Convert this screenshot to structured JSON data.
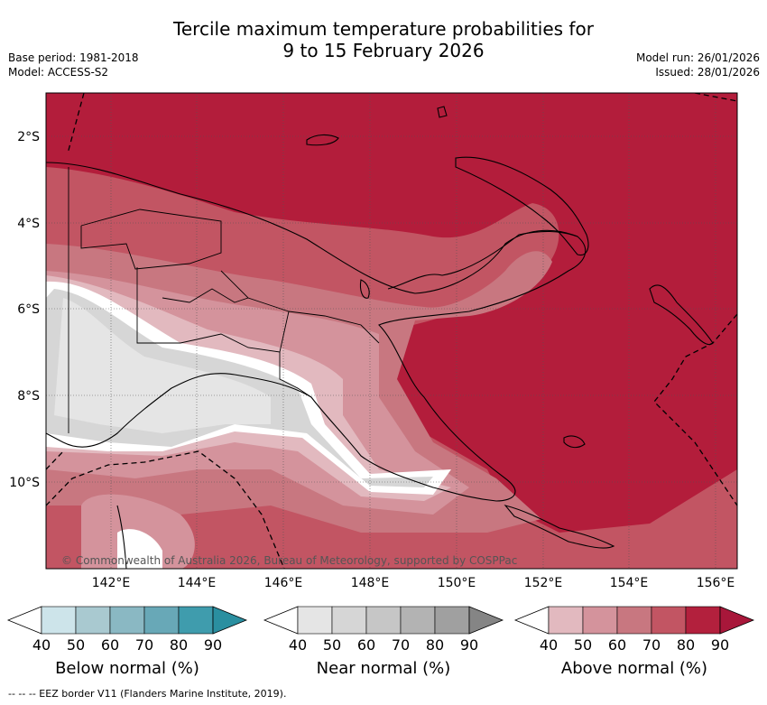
{
  "title_line1": "Tercile maximum temperature probabilities for",
  "title_line2": "9 to 15 February 2026",
  "base_period": "Base period: 1981-2018",
  "model": "Model: ACCESS-S2",
  "model_run": "Model run: 26/01/2026",
  "issued": "Issued: 28/01/2026",
  "copyright": "© Commonwealth of Australia 2026, Bureau of Meteorology, supported by COSPPac",
  "footer": "--  --  -- EEZ border V11 (Flanders Marine Institute, 2019).",
  "lat_labels": [
    "2°S",
    "4°S",
    "6°S",
    "8°S",
    "10°S"
  ],
  "lon_labels": [
    "142°E",
    "144°E",
    "146°E",
    "148°E",
    "150°E",
    "152°E",
    "154°E",
    "156°E"
  ],
  "colorbars": [
    {
      "label": "Below normal (%)",
      "ticks": [
        "40",
        "50",
        "60",
        "70",
        "80",
        "90"
      ],
      "colors": [
        "#cde4ea",
        "#a9c9d0",
        "#8ab8c3",
        "#68a8b7",
        "#3f9cad",
        "#2a8fa0"
      ]
    },
    {
      "label": "Near normal (%)",
      "ticks": [
        "40",
        "50",
        "60",
        "70",
        "80",
        "90"
      ],
      "colors": [
        "#e5e5e5",
        "#d6d6d6",
        "#c6c6c6",
        "#b3b3b3",
        "#a0a0a0",
        "#858585"
      ]
    },
    {
      "label": "Above normal (%)",
      "ticks": [
        "40",
        "50",
        "60",
        "70",
        "80",
        "90"
      ],
      "colors": [
        "#e2b9bf",
        "#d4939c",
        "#c87780",
        "#c25563",
        "#b3203d",
        "#a8173a"
      ]
    }
  ]
}
